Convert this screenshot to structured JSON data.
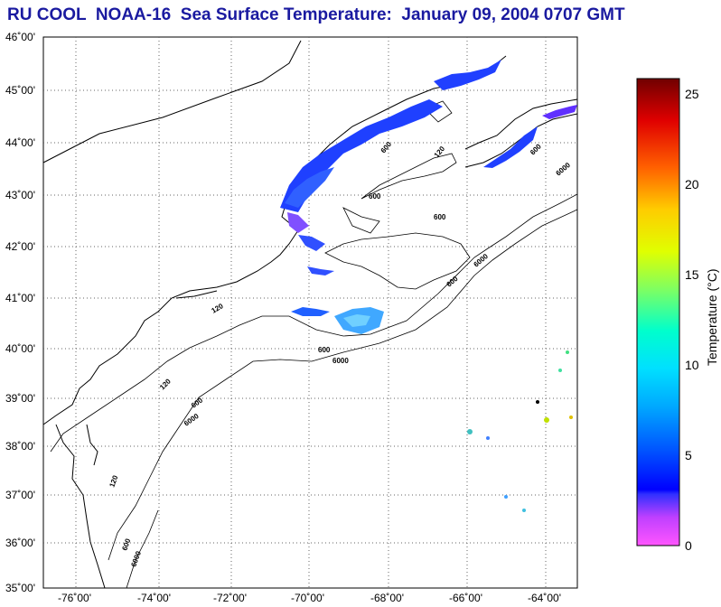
{
  "title": "RU COOL  NOAA-16  Sea Surface Temperature:  January 09, 2004 0707 GMT",
  "map": {
    "lat_labels": [
      "46˚00'",
      "45˚00'",
      "44˚00'",
      "43˚00'",
      "42˚00'",
      "41˚00'",
      "40˚00'",
      "39˚00'",
      "38˚00'",
      "37˚00'",
      "36˚00'",
      "35˚00'"
    ],
    "lon_labels": [
      "-76˚00'",
      "-74˚00'",
      "-72˚00'",
      "-70˚00'",
      "-68˚00'",
      "-66˚00'",
      "-64˚00'"
    ],
    "contour_labels": [
      "600",
      "120",
      "600",
      "600",
      "600",
      "600",
      "6000",
      "6000",
      "600",
      "6000",
      "120",
      "600",
      "6000",
      "120",
      "120",
      "600",
      "6000"
    ]
  },
  "colorbar": {
    "label": "Temperature (°C)",
    "ticks": [
      "25",
      "20",
      "15",
      "10",
      "5",
      "0"
    ],
    "colors": [
      "#ff55ff",
      "#c040ff",
      "#3030ff",
      "#0000ff",
      "#0050ff",
      "#00aaff",
      "#00e0ff",
      "#00ffcc",
      "#80ff60",
      "#e0ff00",
      "#ffcc00",
      "#ff6000",
      "#e00000",
      "#700000"
    ]
  }
}
